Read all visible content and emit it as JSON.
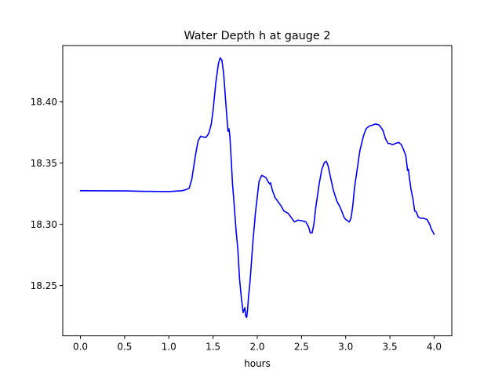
{
  "chart_data": {
    "type": "line",
    "title": "Water Depth h at gauge 2",
    "xlabel": "hours",
    "ylabel": "",
    "xlim": [
      -0.2,
      4.2
    ],
    "ylim": [
      18.209,
      18.446
    ],
    "xticks": [
      0.0,
      0.5,
      1.0,
      1.5,
      2.0,
      2.5,
      3.0,
      3.5,
      4.0
    ],
    "xtick_labels": [
      "0.0",
      "0.5",
      "1.0",
      "1.5",
      "2.0",
      "2.5",
      "3.0",
      "3.5",
      "4.0"
    ],
    "yticks": [
      18.25,
      18.3,
      18.35,
      18.4
    ],
    "ytick_labels": [
      "18.25",
      "18.30",
      "18.35",
      "18.40"
    ],
    "grid": false,
    "series": [
      {
        "color": "#0000ff",
        "x": [
          0.0,
          0.5,
          0.7,
          1.0,
          1.15,
          1.2,
          1.23,
          1.26,
          1.3,
          1.33,
          1.36,
          1.38,
          1.42,
          1.45,
          1.48,
          1.5,
          1.53,
          1.56,
          1.58,
          1.6,
          1.62,
          1.64,
          1.66,
          1.67,
          1.68,
          1.69,
          1.7,
          1.72,
          1.74,
          1.76,
          1.78,
          1.8,
          1.82,
          1.84,
          1.86,
          1.87,
          1.88,
          1.89,
          1.9,
          1.92,
          1.95,
          1.98,
          2.02,
          2.05,
          2.08,
          2.1,
          2.12,
          2.14,
          2.15,
          2.17,
          2.2,
          2.23,
          2.27,
          2.3,
          2.35,
          2.38,
          2.42,
          2.46,
          2.5,
          2.55,
          2.58,
          2.6,
          2.62,
          2.64,
          2.66,
          2.7,
          2.73,
          2.76,
          2.78,
          2.8,
          2.83,
          2.86,
          2.9,
          2.93,
          2.96,
          2.98,
          3.0,
          3.02,
          3.04,
          3.06,
          3.08,
          3.1,
          3.13,
          3.16,
          3.2,
          3.23,
          3.26,
          3.3,
          3.34,
          3.38,
          3.42,
          3.45,
          3.48,
          3.5,
          3.53,
          3.56,
          3.6,
          3.63,
          3.66,
          3.68,
          3.69,
          3.7,
          3.71,
          3.72,
          3.74,
          3.76,
          3.78,
          3.8,
          3.82,
          3.85,
          3.88,
          3.92,
          3.95,
          3.97,
          4.0
        ],
        "y": [
          18.3275,
          18.3273,
          18.327,
          18.3268,
          18.3275,
          18.3285,
          18.3295,
          18.337,
          18.356,
          18.368,
          18.372,
          18.3715,
          18.371,
          18.374,
          18.382,
          18.393,
          18.415,
          18.431,
          18.436,
          18.434,
          18.423,
          18.403,
          18.384,
          18.376,
          18.378,
          18.372,
          18.36,
          18.333,
          18.315,
          18.295,
          18.28,
          18.255,
          18.24,
          18.228,
          18.232,
          18.225,
          18.224,
          18.23,
          18.24,
          18.255,
          18.285,
          18.31,
          18.335,
          18.34,
          18.339,
          18.338,
          18.335,
          18.333,
          18.334,
          18.328,
          18.322,
          18.319,
          18.315,
          18.311,
          18.309,
          18.306,
          18.302,
          18.3035,
          18.303,
          18.302,
          18.298,
          18.293,
          18.293,
          18.3,
          18.313,
          18.333,
          18.345,
          18.3505,
          18.3515,
          18.348,
          18.338,
          18.328,
          18.319,
          18.315,
          18.31,
          18.306,
          18.304,
          18.303,
          18.302,
          18.305,
          18.315,
          18.33,
          18.345,
          18.36,
          18.372,
          18.378,
          18.38,
          18.381,
          18.382,
          18.381,
          18.377,
          18.37,
          18.366,
          18.366,
          18.365,
          18.366,
          18.367,
          18.365,
          18.36,
          18.356,
          18.35,
          18.344,
          18.345,
          18.338,
          18.328,
          18.321,
          18.311,
          18.31,
          18.306,
          18.305,
          18.305,
          18.304,
          18.3,
          18.296,
          18.292
        ]
      }
    ]
  }
}
